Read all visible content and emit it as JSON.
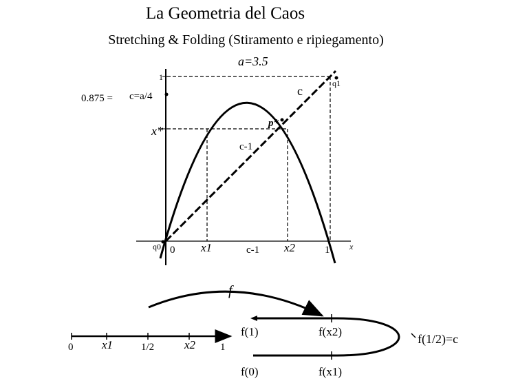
{
  "title": "La Geometria del Caos",
  "subtitle": "Stretching & Folding (Stiramento e ripiegamento)",
  "graph": {
    "param_label": "a=3.5",
    "y_label_one": "1",
    "y_value_prefix": "0.875 =",
    "y_label_c": "c=a/4",
    "y_label_xstar": "x*",
    "label_c": "c",
    "label_c_minus_1": "c-1",
    "label_p": "p*",
    "label_q1": "q1",
    "label_q0": "q0",
    "x_tick_0": "0",
    "x_tick_x1": "x1",
    "x_tick_cminus1": "c-1",
    "x_tick_x2": "x2",
    "x_tick_1": "1",
    "x_axis_label": "x"
  },
  "fold": {
    "map_label": "f",
    "line_ticks": [
      "0",
      "x1",
      "1/2",
      "x2",
      "1"
    ],
    "f1": "f(1)",
    "fx2": "f(x2)",
    "f0": "f(0)",
    "fx1": "f(x1)",
    "f_half": "f(1/2)=c"
  }
}
